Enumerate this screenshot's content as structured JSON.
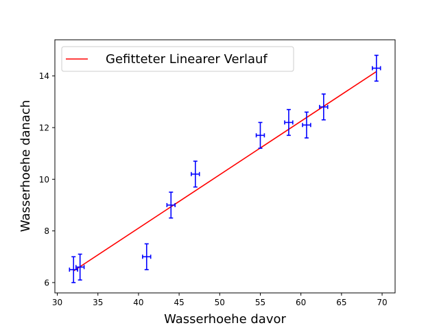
{
  "chart_data": {
    "type": "scatter",
    "xlabel": "Wasserhoehe davor",
    "ylabel": "Wasserhoehe danach",
    "xlim": [
      29.7,
      71.6
    ],
    "ylim": [
      5.6,
      15.4
    ],
    "x_ticks": [
      30,
      35,
      40,
      45,
      50,
      55,
      60,
      65,
      70
    ],
    "y_ticks": [
      6,
      8,
      10,
      12,
      14
    ],
    "grid": false,
    "legend_position": "upper-left",
    "series": [
      {
        "kind": "errorbar",
        "color": "#0000ff",
        "points": [
          {
            "x": 32.0,
            "y": 6.5,
            "xerr": 0.5,
            "yerr": 0.5
          },
          {
            "x": 32.8,
            "y": 6.6,
            "xerr": 0.5,
            "yerr": 0.5
          },
          {
            "x": 41.0,
            "y": 7.0,
            "xerr": 0.5,
            "yerr": 0.5
          },
          {
            "x": 44.0,
            "y": 9.0,
            "xerr": 0.5,
            "yerr": 0.5
          },
          {
            "x": 47.0,
            "y": 10.2,
            "xerr": 0.5,
            "yerr": 0.5
          },
          {
            "x": 55.0,
            "y": 11.7,
            "xerr": 0.5,
            "yerr": 0.5
          },
          {
            "x": 58.5,
            "y": 12.2,
            "xerr": 0.5,
            "yerr": 0.5
          },
          {
            "x": 60.7,
            "y": 12.1,
            "xerr": 0.5,
            "yerr": 0.5
          },
          {
            "x": 62.8,
            "y": 12.8,
            "xerr": 0.5,
            "yerr": 0.5
          },
          {
            "x": 69.3,
            "y": 14.3,
            "xerr": 0.5,
            "yerr": 0.5
          }
        ]
      },
      {
        "kind": "line",
        "name": "Gefitteter Linearer Verlauf",
        "color": "#ff0000",
        "points": [
          {
            "x": 32.0,
            "y": 6.45
          },
          {
            "x": 69.3,
            "y": 14.17
          }
        ]
      }
    ]
  }
}
